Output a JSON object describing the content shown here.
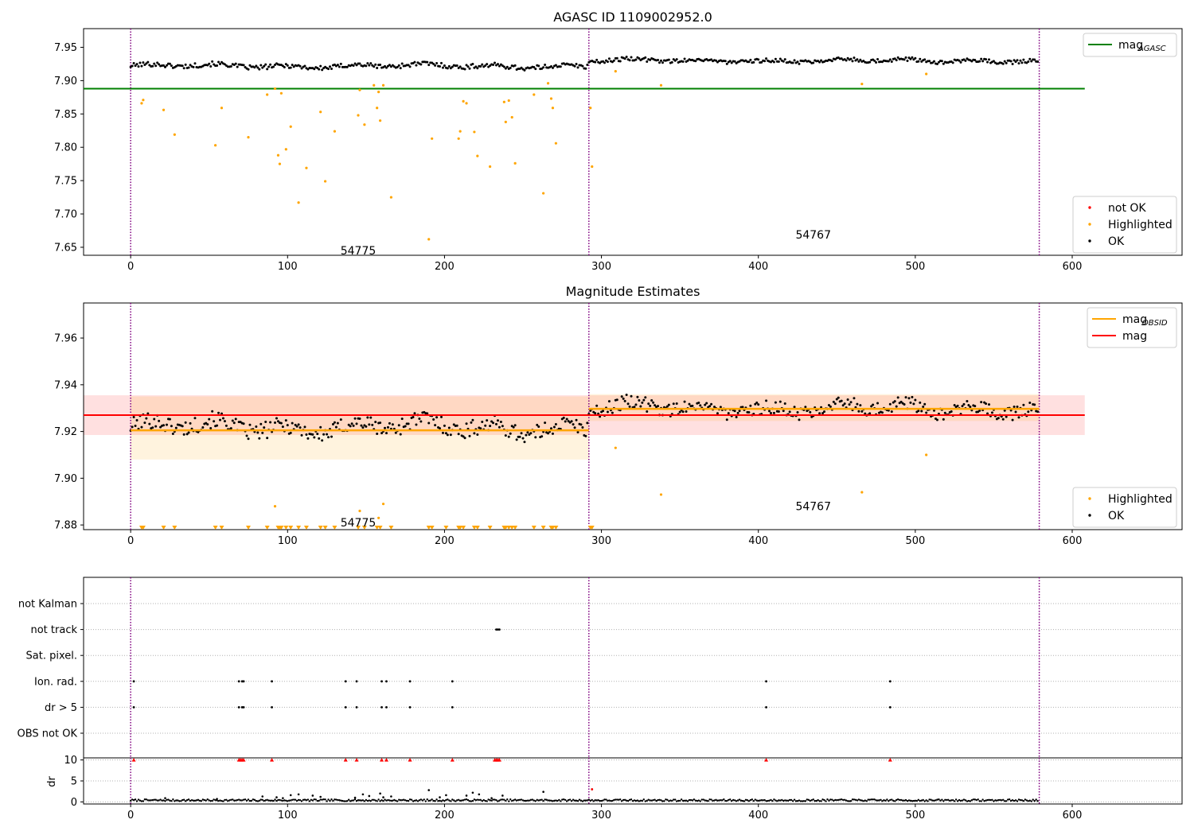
{
  "chart_data": [
    {
      "id": "top",
      "type": "scatter",
      "title": "AGASC ID 1109002952.0",
      "xlim": [
        -30,
        670
      ],
      "ylim": [
        7.638,
        7.978
      ],
      "x_ticks": [
        0,
        100,
        200,
        300,
        400,
        500,
        600
      ],
      "y_ticks": [
        7.65,
        7.7,
        7.75,
        7.8,
        7.85,
        7.9,
        7.95
      ],
      "y_tick_labels": [
        "7.65",
        "7.70",
        "7.75",
        "7.80",
        "7.85",
        "7.90",
        "7.95"
      ],
      "obsid_boundaries": [
        0,
        292,
        579
      ],
      "obsid_labels": [
        {
          "text": "54775",
          "x": 145,
          "y": 7.645
        },
        {
          "text": "54767",
          "x": 435,
          "y": 7.669
        }
      ],
      "mag_agasc": 7.888,
      "mag_agasc_xrange": [
        -30,
        608
      ],
      "legend_top": [
        {
          "label": "mag",
          "sub": "AGASC",
          "color": "#008000",
          "kind": "line"
        }
      ],
      "legend_bottom": [
        {
          "label": "not OK",
          "color": "#ff0000",
          "kind": "dot"
        },
        {
          "label": "Highlighted",
          "color": "#ffa500",
          "kind": "dot"
        },
        {
          "label": "OK",
          "color": "#000000",
          "kind": "dot"
        }
      ],
      "series": [
        {
          "name": "OK",
          "color": "#000000",
          "segments": [
            {
              "x0": 0,
              "x1": 292,
              "mean": 7.922,
              "amp": 0.006,
              "step": 1
            },
            {
              "x0": 292,
              "x1": 579,
              "mean": 7.93,
              "amp": 0.005,
              "step": 1
            }
          ]
        },
        {
          "name": "Highlighted",
          "color": "#ffa500",
          "x": [
            7,
            8,
            21,
            28,
            54,
            58,
            75,
            87,
            92,
            94,
            95,
            96,
            99,
            102,
            107,
            112,
            121,
            124,
            130,
            145,
            146,
            149,
            155,
            157,
            158,
            159,
            161,
            166,
            190,
            192,
            209,
            210,
            212,
            214,
            219,
            221,
            229,
            238,
            239,
            241,
            243,
            245,
            257,
            263,
            266,
            268,
            269,
            271,
            293,
            294,
            309,
            338,
            466,
            507
          ],
          "y": [
            7.866,
            7.871,
            7.856,
            7.819,
            7.803,
            7.859,
            7.815,
            7.879,
            7.888,
            7.788,
            7.775,
            7.881,
            7.797,
            7.831,
            7.717,
            7.769,
            7.853,
            7.749,
            7.824,
            7.848,
            7.886,
            7.834,
            7.893,
            7.859,
            7.883,
            7.84,
            7.893,
            7.725,
            7.662,
            7.813,
            7.813,
            7.824,
            7.869,
            7.866,
            7.823,
            7.787,
            7.771,
            7.868,
            7.838,
            7.87,
            7.845,
            7.776,
            7.879,
            7.731,
            7.896,
            7.873,
            7.859,
            7.806,
            7.859,
            7.771,
            7.914,
            7.893,
            7.895,
            7.91
          ]
        },
        {
          "name": "not OK",
          "color": "#ff0000",
          "x": [],
          "y": []
        }
      ]
    },
    {
      "id": "middle",
      "type": "scatter",
      "title": "Magnitude Estimates",
      "xlim": [
        -30,
        670
      ],
      "ylim": [
        7.878,
        7.975
      ],
      "x_ticks": [
        0,
        100,
        200,
        300,
        400,
        500,
        600
      ],
      "y_ticks": [
        7.88,
        7.9,
        7.92,
        7.94,
        7.96
      ],
      "y_tick_labels": [
        "7.88",
        "7.90",
        "7.92",
        "7.94",
        "7.96"
      ],
      "obsid_boundaries": [
        0,
        292,
        579
      ],
      "obsid_labels": [
        {
          "text": "54775",
          "x": 145,
          "y": 7.881
        },
        {
          "text": "54767",
          "x": 435,
          "y": 7.888
        }
      ],
      "mag": {
        "value": 7.927,
        "band": [
          7.9185,
          7.9355
        ],
        "xrange": [
          -30,
          608
        ]
      },
      "mag_obsid": [
        {
          "x0": 0,
          "x1": 292,
          "value": 7.9205,
          "band": [
            7.908,
            7.935
          ]
        },
        {
          "x0": 292,
          "x1": 579,
          "value": 7.9297,
          "band": [
            7.9245,
            7.936
          ]
        }
      ],
      "legend_top": [
        {
          "label": "mag",
          "sub": "OBSID",
          "color": "#ffa500",
          "kind": "line"
        },
        {
          "label": "mag",
          "color": "#ff0000",
          "kind": "line"
        }
      ],
      "legend_bottom": [
        {
          "label": "Highlighted",
          "color": "#ffa500",
          "kind": "dot"
        },
        {
          "label": "OK",
          "color": "#000000",
          "kind": "dot"
        }
      ],
      "below_range_marker_x": [
        7,
        8,
        21,
        28,
        54,
        58,
        75,
        87,
        94,
        95,
        96,
        99,
        102,
        107,
        112,
        121,
        124,
        130,
        145,
        149,
        157,
        159,
        166,
        190,
        192,
        201,
        209,
        210,
        212,
        219,
        221,
        229,
        238,
        239,
        241,
        243,
        245,
        257,
        263,
        268,
        269,
        271,
        293,
        294
      ],
      "series": [
        {
          "name": "OK",
          "color": "#000000",
          "segments": [
            {
              "x0": 0,
              "x1": 292,
              "mean": 7.922,
              "amp": 0.006,
              "step": 1
            },
            {
              "x0": 292,
              "x1": 579,
              "mean": 7.93,
              "amp": 0.005,
              "step": 1
            }
          ]
        },
        {
          "name": "Highlighted",
          "color": "#ffa500",
          "x": [
            92,
            146,
            158,
            161,
            309,
            338,
            466,
            507
          ],
          "y": [
            7.888,
            7.886,
            7.883,
            7.889,
            7.913,
            7.893,
            7.894,
            7.91
          ]
        }
      ]
    },
    {
      "id": "flags",
      "type": "scatter",
      "xlim": [
        -30,
        670
      ],
      "categories": [
        "not Kalman",
        "not track",
        "Sat. pixel.",
        "Ion. rad.",
        "dr > 5",
        "OBS not OK"
      ],
      "obsid_boundaries": [
        0,
        292,
        579
      ],
      "points": {
        "not track": [
          233,
          234,
          235
        ],
        "Ion. rad.": [
          2,
          69,
          71,
          72,
          90,
          137,
          144,
          160,
          163,
          178,
          205,
          405,
          484
        ],
        "dr > 5": [
          2,
          69,
          71,
          72,
          90,
          137,
          144,
          160,
          163,
          178,
          205,
          405,
          484
        ]
      }
    },
    {
      "id": "dr",
      "type": "scatter",
      "ylabel": "dr",
      "xlim": [
        -30,
        670
      ],
      "ylim": [
        -0.5,
        10.5
      ],
      "x_ticks": [
        0,
        100,
        200,
        300,
        400,
        500,
        600
      ],
      "y_ticks": [
        0,
        5,
        10
      ],
      "y_tick_labels": [
        "0",
        "5",
        "10"
      ],
      "obsid_boundaries": [
        0,
        292,
        579
      ],
      "capped_value": 10,
      "capped_x": [
        2,
        69,
        70,
        71,
        72,
        90,
        137,
        144,
        160,
        163,
        178,
        205,
        232,
        233,
        234,
        235,
        405,
        484
      ],
      "series": [
        {
          "name": "dr",
          "color": "#000000",
          "x": [
            22,
            55,
            84,
            93,
            97,
            102,
            107,
            116,
            121,
            143,
            148,
            152,
            159,
            161,
            166,
            190,
            197,
            201,
            214,
            218,
            222,
            230,
            237,
            263,
            294
          ],
          "y": [
            0.9,
            0.7,
            1.3,
            1.1,
            0.9,
            1.6,
            1.8,
            1.5,
            1.2,
            1.0,
            1.8,
            1.4,
            2.0,
            1.1,
            1.3,
            2.8,
            1.1,
            1.6,
            1.5,
            2.2,
            1.8,
            0.9,
            1.5,
            2.4,
            3.0
          ]
        }
      ]
    }
  ]
}
